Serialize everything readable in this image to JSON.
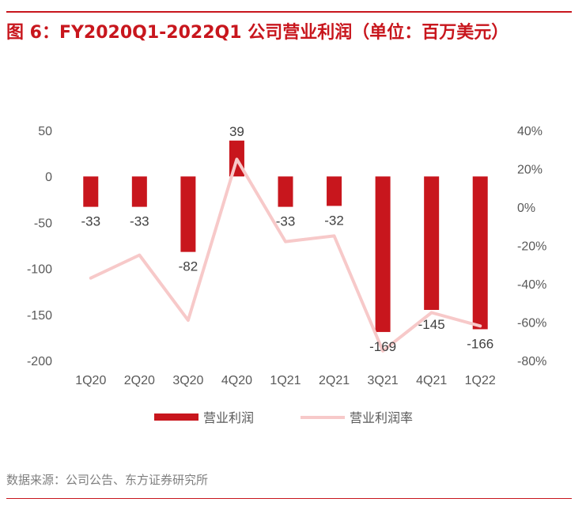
{
  "title": "图 6：FY2020Q1-2022Q1 公司营业利润（单位：百万美元）",
  "source": "数据来源：公司公告、东方证券研究所",
  "colors": {
    "accent": "#c8161d",
    "bar": "#c8161d",
    "line": "#f7c9c9"
  },
  "chart_data": {
    "type": "bar",
    "categories": [
      "1Q20",
      "2Q20",
      "3Q20",
      "4Q20",
      "1Q21",
      "2Q21",
      "3Q21",
      "4Q21",
      "1Q22"
    ],
    "series": [
      {
        "name": "营业利润",
        "type": "bar",
        "axis": "left",
        "values": [
          -33,
          -33,
          -82,
          39,
          -33,
          -32,
          -169,
          -145,
          -166
        ]
      },
      {
        "name": "营业利润率",
        "type": "line",
        "axis": "right",
        "values": [
          -37,
          -25,
          -59,
          25,
          -18,
          -15,
          -75,
          -55,
          -62
        ]
      }
    ],
    "left_axis": {
      "min": -200,
      "max": 50,
      "ticks": [
        "50",
        "0",
        "-50",
        "-100",
        "-150",
        "-200"
      ]
    },
    "right_axis": {
      "min": -80,
      "max": 40,
      "ticks": [
        "40%",
        "20%",
        "0%",
        "-20%",
        "-40%",
        "-60%",
        "-80%"
      ]
    },
    "data_labels": [
      "-33",
      "-33",
      "-82",
      "39",
      "-33",
      "-32",
      "-169",
      "-145",
      "-166"
    ],
    "legend": [
      "营业利润",
      "营业利润率"
    ],
    "legend_position": "bottom",
    "grid": false
  }
}
